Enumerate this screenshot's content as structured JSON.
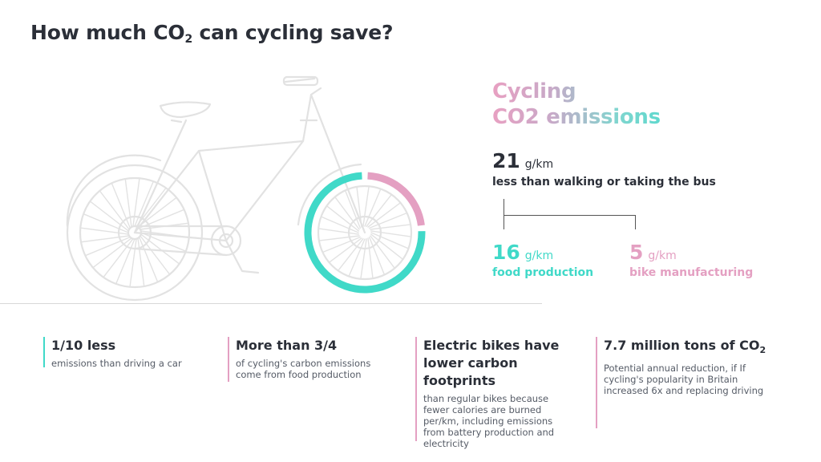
{
  "title": {
    "prefix": "How much CO",
    "sub": "2",
    "suffix": " can cycling save?"
  },
  "emissions_title": {
    "line1": "Cycling",
    "line2": "CO2 emissions"
  },
  "total": {
    "value": "21",
    "unit": "g/km",
    "description": "less than walking or taking the bus"
  },
  "breakdown": [
    {
      "value": "16",
      "unit": "g/km",
      "label": "food production",
      "color": "#40d9c8"
    },
    {
      "value": "5",
      "unit": "g/km",
      "label": "bike manufacturing",
      "color": "#e4a0c2"
    }
  ],
  "donut": {
    "food_fraction": 0.762,
    "manufacturing_fraction": 0.238
  },
  "facts": [
    {
      "heading": "1/10 less",
      "body": "emissions than driving a car",
      "color": "#40d9c8"
    },
    {
      "heading": "More than 3/4",
      "body": "of cycling's carbon emissions come from food production",
      "color": "#e4a0c2"
    },
    {
      "heading": "Electric bikes have lower carbon footprints",
      "body": "than regular bikes because fewer calories are burned per/km, including emissions from battery production and electricity",
      "color": "#e4a0c2"
    },
    {
      "heading_prefix": "7.7 million tons of CO",
      "heading_sub": "2",
      "body": "Potential annual reduction, if If cycling's popularity in Britain increased 6x and replacing driving",
      "color": "#e4a0c2"
    }
  ]
}
